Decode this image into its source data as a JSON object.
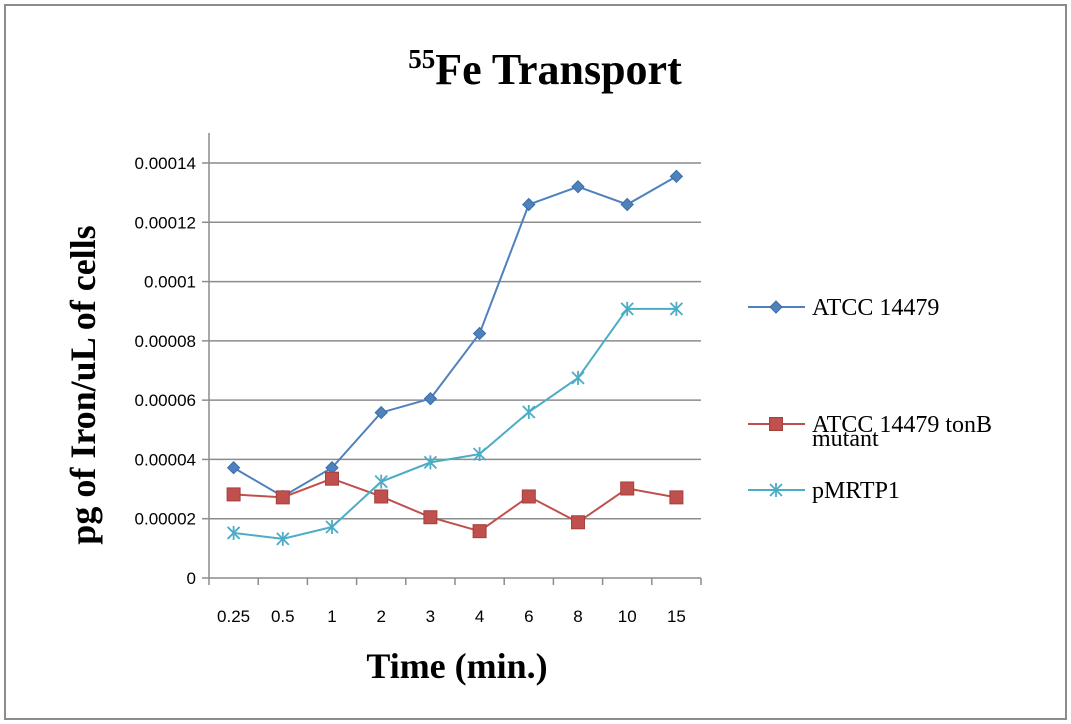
{
  "chart_data": {
    "type": "line",
    "title_superscript": "55",
    "title": "Fe Transport",
    "xlabel": "Time (min.)",
    "ylabel": "pg of Iron/uL of cells",
    "categories": [
      "0.25",
      "0.5",
      "1",
      "2",
      "3",
      "4",
      "6",
      "8",
      "10",
      "15"
    ],
    "y_ticks": [
      "0",
      "0.00002",
      "0.00004",
      "0.00006",
      "0.00008",
      "0.0001",
      "0.00012",
      "0.00014"
    ],
    "ylim": [
      0,
      0.00014
    ],
    "grid": "horizontal",
    "legend_position": "right",
    "series": [
      {
        "name": "ATCC 14479",
        "color": "#4f81bd",
        "marker": "diamond",
        "values": [
          3.72e-05,
          2.75e-05,
          3.72e-05,
          5.58e-05,
          6.05e-05,
          8.25e-05,
          0.000126,
          0.000132,
          0.000126,
          0.0001355
        ]
      },
      {
        "name_lines": [
          "ATCC 14479 tonB",
          "mutant"
        ],
        "name": "ATCC 14479 tonB mutant",
        "color": "#c0504d",
        "marker": "square",
        "values": [
          2.82e-05,
          2.72e-05,
          3.35e-05,
          2.75e-05,
          2.05e-05,
          1.58e-05,
          2.75e-05,
          1.88e-05,
          3.02e-05,
          2.72e-05
        ]
      },
      {
        "name": "pMRTP1",
        "color": "#4bacc6",
        "marker": "asterisk",
        "values": [
          1.52e-05,
          1.32e-05,
          1.72e-05,
          3.25e-05,
          3.9e-05,
          4.18e-05,
          5.6e-05,
          6.75e-05,
          9.08e-05,
          9.08e-05
        ]
      }
    ]
  }
}
